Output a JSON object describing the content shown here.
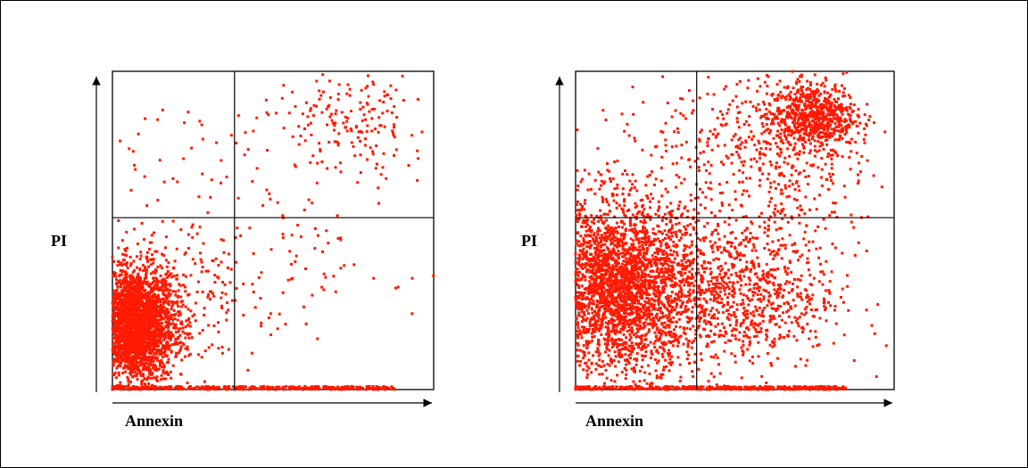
{
  "chart_data": [
    {
      "type": "scatter",
      "ylabel": "PI",
      "xlabel": "Annexin",
      "xlim": [
        0,
        100
      ],
      "ylim": [
        0,
        100
      ],
      "quadrant_x": 38,
      "quadrant_y": 54,
      "grid": false,
      "legend": "none",
      "point_color": "#ff1a00",
      "clusters": [
        {
          "region": "lower-left (viable)",
          "center": [
            7,
            20
          ],
          "spread": [
            6,
            9
          ],
          "count": 2600
        },
        {
          "region": "lower-left halo",
          "center": [
            18,
            28
          ],
          "spread": [
            11,
            12
          ],
          "count": 260
        },
        {
          "region": "upper-right (late apoptotic)",
          "center": [
            74,
            84
          ],
          "spread": [
            12,
            9
          ],
          "count": 170
        },
        {
          "region": "diagonal scatter",
          "center": [
            48,
            45
          ],
          "spread": [
            20,
            22
          ],
          "count": 150
        },
        {
          "region": "upper-left sparse",
          "center": [
            18,
            72
          ],
          "spread": [
            12,
            10
          ],
          "count": 25
        }
      ],
      "axis_line_points": {
        "y_range_on_x_axis": [
          0,
          1
        ],
        "x_range": [
          0,
          88
        ],
        "count": 400
      }
    },
    {
      "type": "scatter",
      "ylabel": "PI",
      "xlabel": "Annexin",
      "xlim": [
        0,
        100
      ],
      "ylim": [
        0,
        100
      ],
      "quadrant_x": 38,
      "quadrant_y": 54,
      "grid": false,
      "legend": "none",
      "point_color": "#ff1a00",
      "clusters": [
        {
          "region": "lower-left (viable)",
          "center": [
            14,
            32
          ],
          "spread": [
            12,
            13
          ],
          "count": 2800
        },
        {
          "region": "lower-right (early apoptotic)",
          "center": [
            52,
            30
          ],
          "spread": [
            15,
            12
          ],
          "count": 900
        },
        {
          "region": "upper-right (late apoptotic)",
          "center": [
            74,
            86
          ],
          "spread": [
            7,
            5
          ],
          "count": 700
        },
        {
          "region": "upper-right spread",
          "center": [
            60,
            72
          ],
          "spread": [
            18,
            14
          ],
          "count": 500
        },
        {
          "region": "upper-left sparse",
          "center": [
            18,
            70
          ],
          "spread": [
            12,
            12
          ],
          "count": 60
        }
      ],
      "axis_line_points": {
        "y_range_on_x_axis": [
          0,
          1
        ],
        "x_range": [
          0,
          85
        ],
        "count": 400
      }
    }
  ]
}
